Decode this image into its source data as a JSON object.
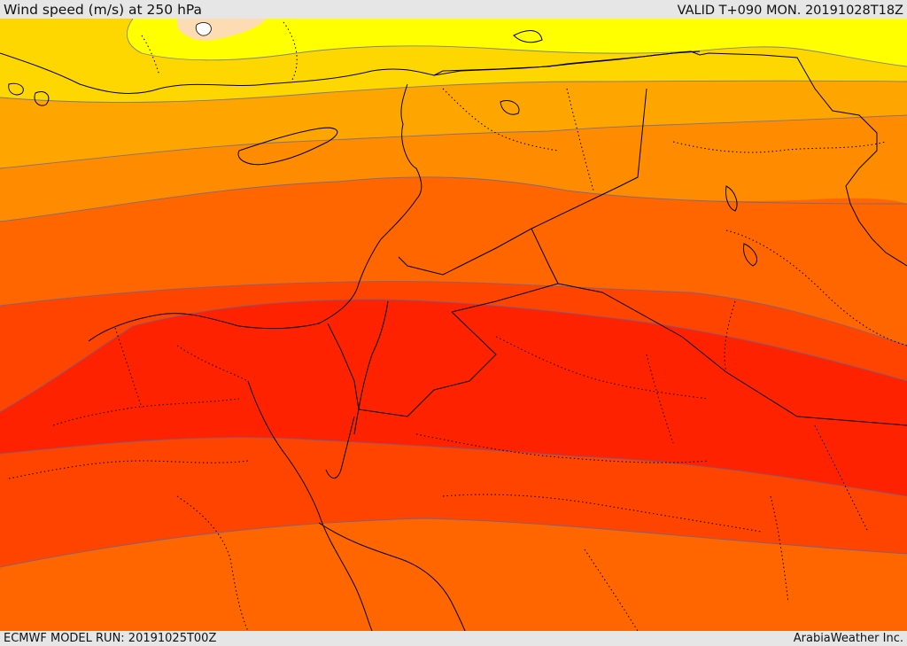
{
  "header": {
    "title": "Wind speed (m/s) at 250 hPa",
    "valid": "VALID T+090 MON. 20191028T18Z"
  },
  "footer": {
    "model_run": "ECMWF MODEL RUN: 20191025T00Z",
    "credit": "ArabiaWeather Inc."
  },
  "colors": {
    "band_yellow": "#ffff00",
    "band_gold": "#ffd700",
    "band_orange_light": "#ffa500",
    "band_orange": "#ff8c00",
    "band_orange_dark": "#ff6600",
    "band_red_orange": "#ff4400",
    "band_red": "#ff2200",
    "low_patch": "#fddbb3",
    "contour_line": "#5566aa",
    "coastline": "#000000"
  }
}
